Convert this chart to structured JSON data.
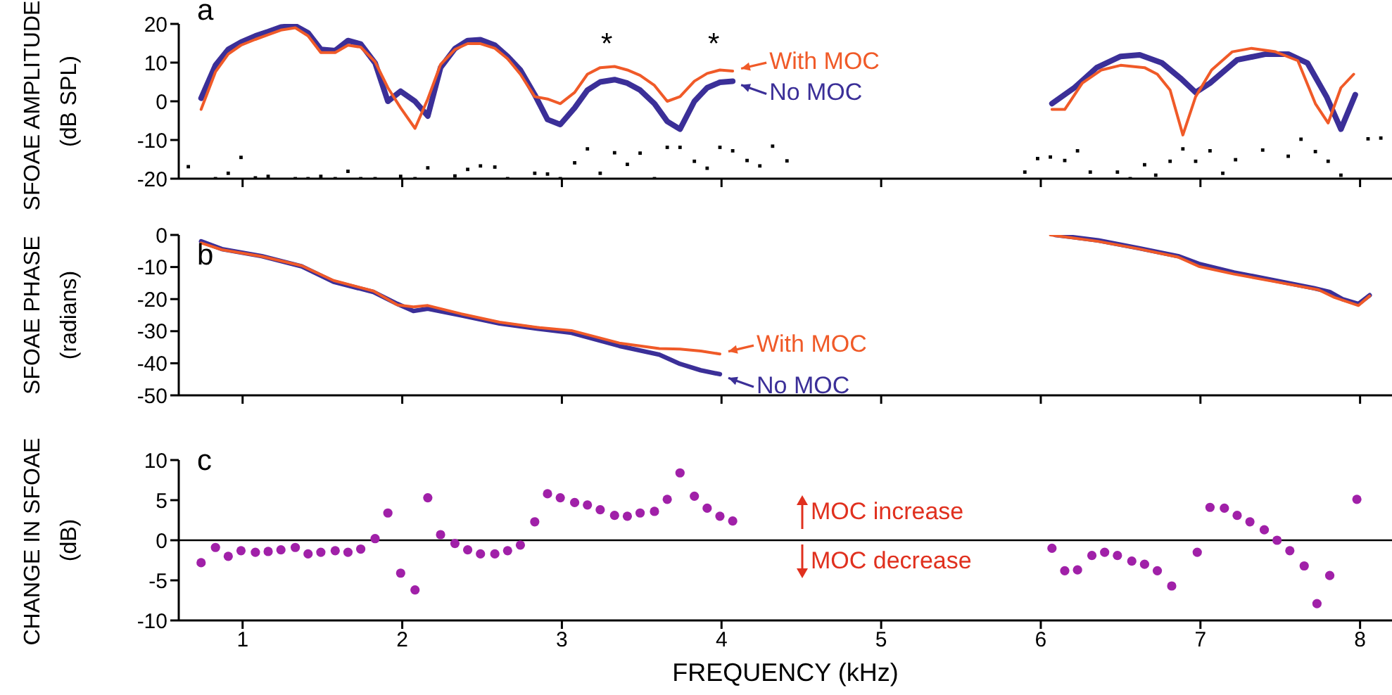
{
  "chart_data": [
    {
      "type": "line",
      "ylabel": "SFOAE AMPLITUDE\n(dB SPL)",
      "xlim": [
        0.6,
        8.2
      ],
      "xticks": [
        1,
        2,
        3,
        4,
        5,
        6,
        7,
        8
      ],
      "ylim": [
        -20,
        20
      ],
      "yticks": [
        -20,
        -10,
        0,
        10,
        20
      ],
      "tick_labels": "y",
      "legend": "top",
      "annotations": [
        "a",
        "*",
        "*"
      ],
      "series": [
        {
          "name": "With MOC",
          "color": "#f05a28",
          "x": [
            0.74,
            0.83,
            0.91,
            0.99,
            1.08,
            1.16,
            1.24,
            1.33,
            1.41,
            1.49,
            1.58,
            1.66,
            1.74,
            1.83,
            1.91,
            1.99,
            2.08,
            2.16,
            2.24,
            2.33,
            2.41,
            2.49,
            2.58,
            2.66,
            2.74,
            2.83,
            2.91,
            2.99,
            3.08,
            3.16,
            3.24,
            3.33,
            3.41,
            3.49,
            3.58,
            3.66,
            3.74,
            3.83,
            3.91,
            3.99,
            4.07,
            5,
            6.07,
            6.15,
            6.26,
            6.38,
            6.5,
            6.65,
            6.73,
            6.81,
            6.89,
            6.97,
            7.07,
            7.2,
            7.32,
            7.47,
            7.61,
            7.72,
            7.8,
            7.88,
            7.96
          ],
          "values": [
            -2.1,
            7.6,
            12.2,
            14.5,
            16,
            17.2,
            18.4,
            19,
            16.9,
            12.6,
            12.6,
            14.5,
            14,
            10.2,
            3.5,
            -1.7,
            -7,
            0.6,
            9.5,
            13.4,
            14.9,
            14.9,
            13.7,
            11,
            7,
            1.2,
            0.6,
            -0.6,
            2.3,
            7,
            8.7,
            9,
            8.1,
            6.7,
            4.1,
            0,
            1.2,
            5.2,
            7.2,
            8.1,
            7.8,
            null,
            -2.1,
            -2.1,
            4.7,
            8.1,
            9.3,
            8.7,
            7,
            2.9,
            -8.7,
            1.2,
            8.1,
            12.8,
            13.7,
            12.8,
            10.5,
            -0.6,
            -5.6,
            3.5,
            7
          ]
        },
        {
          "name": "No MOC",
          "color": "#3b2f98",
          "x": [
            0.74,
            0.83,
            0.91,
            0.99,
            1.08,
            1.16,
            1.24,
            1.33,
            1.41,
            1.49,
            1.58,
            1.66,
            1.74,
            1.83,
            1.91,
            1.99,
            2.08,
            2.16,
            2.24,
            2.33,
            2.41,
            2.49,
            2.58,
            2.66,
            2.74,
            2.83,
            2.91,
            2.99,
            3.08,
            3.16,
            3.24,
            3.33,
            3.41,
            3.49,
            3.58,
            3.66,
            3.74,
            3.83,
            3.91,
            3.99,
            4.07,
            5,
            6.07,
            6.21,
            6.35,
            6.5,
            6.62,
            6.76,
            6.88,
            6.97,
            7.06,
            7.23,
            7.41,
            7.55,
            7.67,
            7.79,
            7.88,
            7.97
          ],
          "values": [
            0.8,
            9.3,
            13.4,
            15.3,
            16.9,
            18,
            19.2,
            19.5,
            17.7,
            13.4,
            13.1,
            15.7,
            14.8,
            9.9,
            0,
            2.6,
            0,
            -3.8,
            8.7,
            13.6,
            15.7,
            15.9,
            14.5,
            11.6,
            8.1,
            1.7,
            -4.7,
            -6,
            -1.7,
            2.9,
            5,
            5.6,
            4.7,
            2.9,
            -0.6,
            -5.2,
            -7.2,
            0,
            3.5,
            4.9,
            5.2,
            null,
            -0.6,
            3.5,
            8.7,
            11.6,
            12,
            9.9,
            5.8,
            2.3,
            4.7,
            10.7,
            12.2,
            12.2,
            9.9,
            1.2,
            -7.2,
            1.7
          ]
        },
        {
          "type": "scatter",
          "marker": "square",
          "color": "#000000",
          "x": [
            0.66,
            0.83,
            0.91,
            0.99,
            1.08,
            1.16,
            1.33,
            1.41,
            1.49,
            1.58,
            1.66,
            1.74,
            1.83,
            1.99,
            2.08,
            2.16,
            2.33,
            2.41,
            2.49,
            2.58,
            2.66,
            2.83,
            2.91,
            2.99,
            3.08,
            3.16,
            3.24,
            3.33,
            3.41,
            3.49,
            3.58,
            3.66,
            3.74,
            3.83,
            3.91,
            3.99,
            4.07,
            4.16,
            4.24,
            4.32,
            4.41,
            5.9,
            5.98,
            6.06,
            6.15,
            6.23,
            6.31,
            6.48,
            6.56,
            6.65,
            6.72,
            6.81,
            6.89,
            6.97,
            7.06,
            7.14,
            7.22,
            7.39,
            7.55,
            7.63,
            7.72,
            7.8,
            7.88,
            8.05,
            8.13
          ],
          "values": [
            -16.9,
            -20,
            -18.6,
            -14.5,
            -19.8,
            -19.4,
            -20,
            -20,
            -19.4,
            -20,
            -18.1,
            -20,
            -20,
            -19.4,
            -20,
            -17.2,
            -19.3,
            -17.6,
            -16.7,
            -17,
            -20,
            -18.6,
            -18.8,
            -20,
            -15.9,
            -12.3,
            -18.6,
            -13.3,
            -16.3,
            -13.4,
            -20,
            -11.9,
            -11.9,
            -15.5,
            -17.3,
            -11.9,
            -12.8,
            -15.3,
            -16.7,
            -11.6,
            -15.4,
            -18.3,
            -14.8,
            -14.4,
            -15.3,
            -12.8,
            -18.3,
            -18.3,
            -20,
            -16.4,
            -19.1,
            -15.5,
            -12.3,
            -15.5,
            -12.8,
            -18.6,
            -15.1,
            -12.6,
            -14.2,
            -9.8,
            -13,
            -15.5,
            -19.1,
            -9.7,
            -9.5
          ]
        }
      ]
    },
    {
      "type": "line",
      "ylabel": "SFOAE PHASE\n(radians)",
      "xlim": [
        0.6,
        8.2
      ],
      "xticks": [
        1,
        2,
        3,
        4,
        5,
        6,
        7,
        8
      ],
      "ylim": [
        -50,
        0
      ],
      "yticks": [
        -50,
        -40,
        -30,
        -20,
        -10,
        0
      ],
      "tick_labels": "y",
      "legend": "bottom",
      "annotations": [
        "b"
      ],
      "series": [
        {
          "name": "With MOC",
          "color": "#f05a28",
          "x": [
            0.74,
            0.87,
            1.12,
            1.37,
            1.57,
            1.82,
            1.97,
            2.07,
            2.16,
            2.37,
            2.61,
            2.86,
            3.06,
            3.36,
            3.61,
            3.74,
            3.87,
            3.99,
            5,
            6.06,
            6.36,
            6.61,
            6.86,
            6.99,
            7.21,
            7.46,
            7.74,
            7.84,
            7.99,
            8.06
          ],
          "values": [
            -2.5,
            -4.6,
            -6.7,
            -9.6,
            -14.2,
            -17.5,
            -21.8,
            -22.4,
            -22,
            -24.6,
            -27.2,
            -28.9,
            -29.8,
            -33.7,
            -35.4,
            -35.6,
            -36.2,
            -37.1,
            null,
            0,
            -2,
            -4.3,
            -6.9,
            -9.8,
            -12.2,
            -14.5,
            -17.1,
            -19.5,
            -22,
            -19
          ]
        },
        {
          "name": "No MOC",
          "color": "#3b2f98",
          "x": [
            0.74,
            0.87,
            1.12,
            1.37,
            1.57,
            1.82,
            1.97,
            2.07,
            2.16,
            2.37,
            2.61,
            2.86,
            3.06,
            3.36,
            3.61,
            3.74,
            3.87,
            3.99,
            5,
            6.09,
            6.36,
            6.61,
            6.86,
            6.99,
            7.21,
            7.46,
            7.71,
            7.81,
            7.89,
            7.99,
            8.06
          ],
          "values": [
            -2,
            -4.4,
            -6.6,
            -9.8,
            -14.6,
            -17.8,
            -21.5,
            -23.7,
            -23,
            -25.1,
            -27.6,
            -29.3,
            -30.5,
            -34.6,
            -37.3,
            -40.2,
            -42.2,
            -43.4,
            null,
            0,
            -1.7,
            -4.1,
            -6.6,
            -9,
            -11.7,
            -14.1,
            -16.6,
            -17.8,
            -20,
            -21.5,
            -18.8
          ]
        }
      ]
    },
    {
      "type": "scatter",
      "marker": "circle",
      "color": "#a020a8",
      "xlabel": "FREQUENCY (kHz)",
      "ylabel": "CHANGE IN SFOAE\n(dB)",
      "xlim": [
        0.6,
        8.2
      ],
      "xticks": [
        1,
        2,
        3,
        4,
        5,
        6,
        7,
        8
      ],
      "ylim": [
        -10,
        10
      ],
      "yticks": [
        -10,
        -5,
        0,
        5,
        10
      ],
      "annotations": [
        "c",
        "MOC increase",
        "MOC decrease"
      ],
      "ref_lines": [
        {
          "axis": "y",
          "value": 0,
          "color": "#000000"
        }
      ],
      "x": [
        0.74,
        0.83,
        0.91,
        0.99,
        1.08,
        1.16,
        1.24,
        1.33,
        1.41,
        1.49,
        1.58,
        1.66,
        1.74,
        1.83,
        1.91,
        1.99,
        2.08,
        2.16,
        2.24,
        2.33,
        2.41,
        2.49,
        2.58,
        2.66,
        2.74,
        2.83,
        2.91,
        2.99,
        3.08,
        3.16,
        3.24,
        3.33,
        3.41,
        3.49,
        3.58,
        3.66,
        3.74,
        3.83,
        3.91,
        3.99,
        4.07,
        6.07,
        6.15,
        6.23,
        6.32,
        6.4,
        6.48,
        6.57,
        6.65,
        6.73,
        6.82,
        6.98,
        7.06,
        7.15,
        7.23,
        7.31,
        7.4,
        7.48,
        7.56,
        7.65,
        7.73,
        7.81,
        7.98
      ],
      "values": [
        -2.8,
        -0.9,
        -2,
        -1.3,
        -1.5,
        -1.4,
        -1.2,
        -0.9,
        -1.7,
        -1.5,
        -1.3,
        -1.5,
        -1.1,
        0.2,
        3.4,
        -4.1,
        -6.2,
        5.3,
        0.7,
        -0.4,
        -1.2,
        -1.7,
        -1.7,
        -1.3,
        -0.6,
        2.3,
        5.8,
        5.3,
        4.7,
        4.4,
        3.8,
        3.1,
        3,
        3.4,
        3.6,
        5.1,
        8.4,
        5.5,
        4,
        3,
        2.4,
        -1,
        -3.8,
        -3.7,
        -1.9,
        -1.5,
        -1.9,
        -2.6,
        -3,
        -3.8,
        -5.7,
        -1.5,
        4.1,
        4,
        3.1,
        2.3,
        1.3,
        0,
        -1.3,
        -3.2,
        -7.9,
        -4.4,
        5.1
      ]
    }
  ]
}
